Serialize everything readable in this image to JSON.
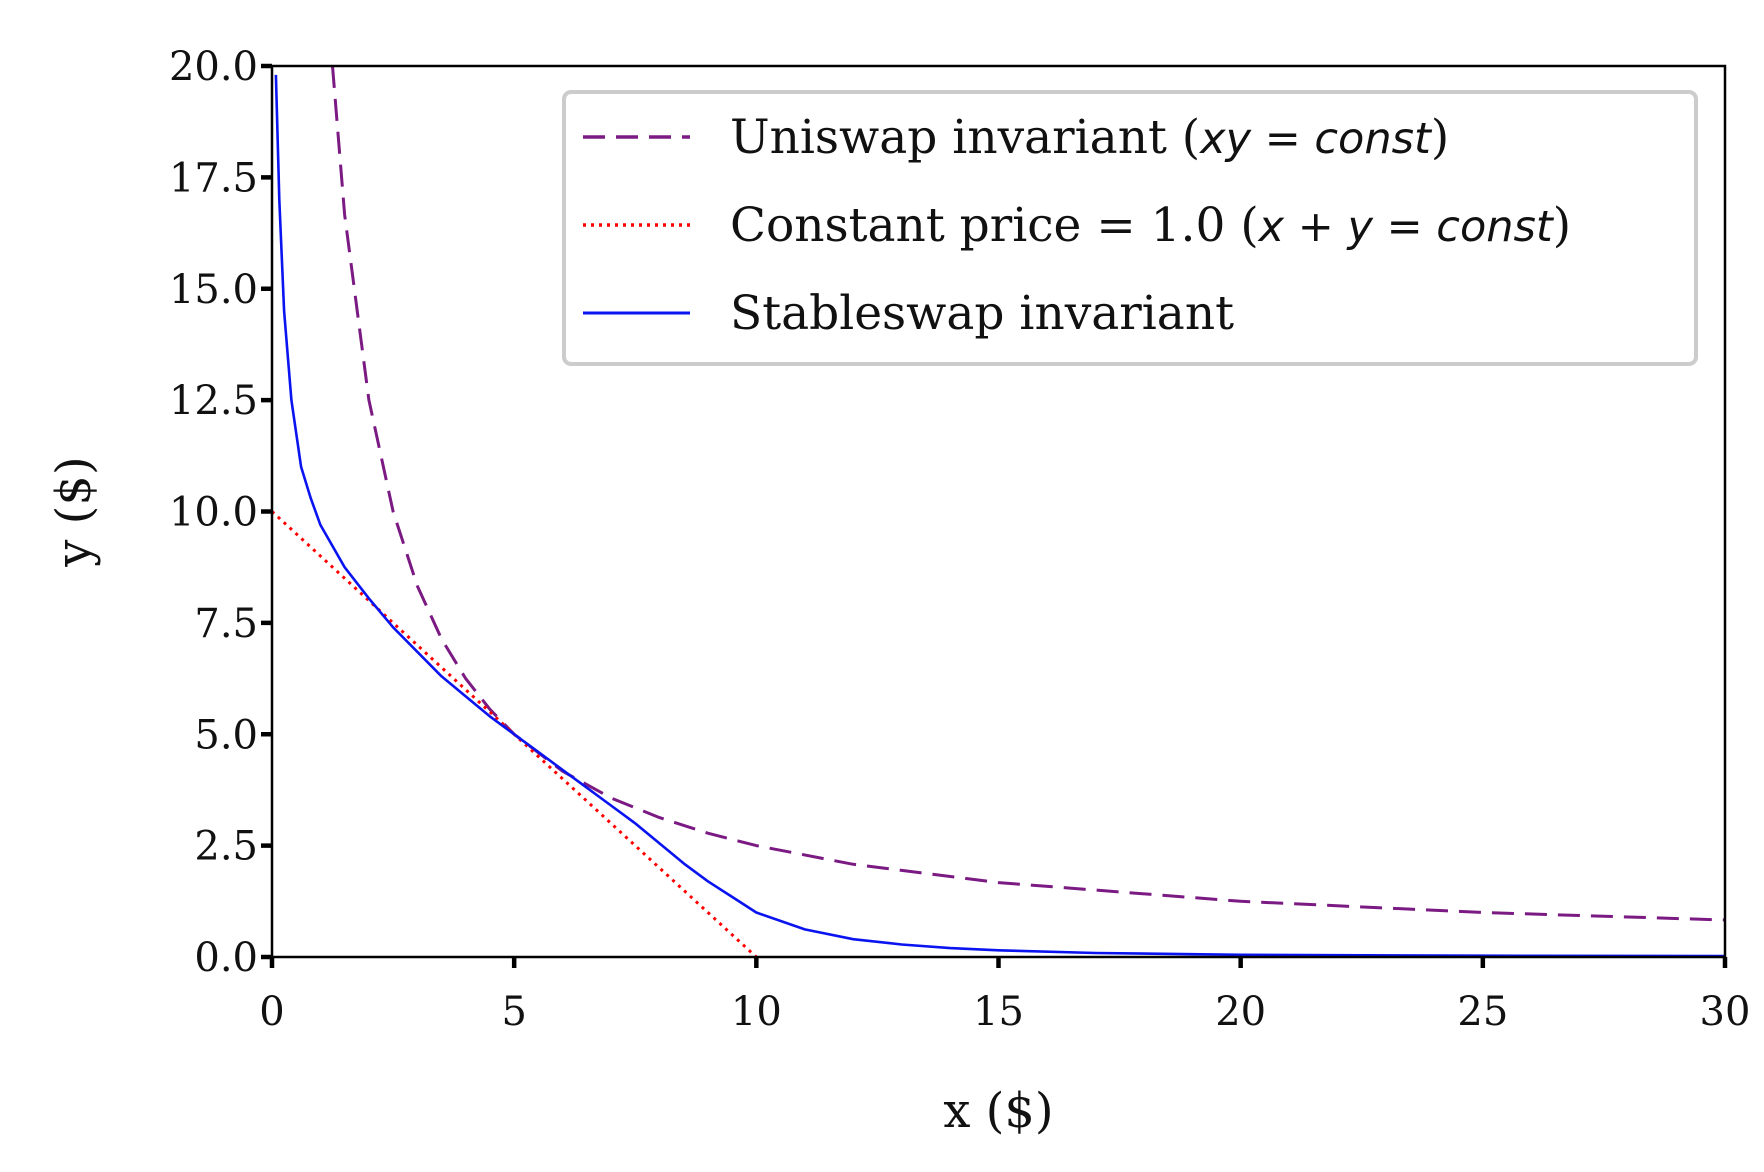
{
  "chart_data": {
    "type": "line",
    "xlabel": "x ($)",
    "ylabel": "y ($)",
    "xlim": [
      0,
      30
    ],
    "ylim": [
      0,
      20
    ],
    "x_ticks": [
      "0",
      "5",
      "10",
      "15",
      "20",
      "25",
      "30"
    ],
    "y_ticks": [
      "0.0",
      "2.5",
      "5.0",
      "7.5",
      "10.0",
      "12.5",
      "15.0",
      "17.5",
      "20.0"
    ],
    "grid": false,
    "legend_position": "top-right",
    "series": [
      {
        "name": "Uniswap invariant (xy = const)",
        "legend_prefix": "Uniswap invariant (",
        "legend_math": "xy = const",
        "legend_suffix": ")",
        "style": "dashed",
        "color": "#7b1a83",
        "x": [
          1.25,
          1.5,
          2,
          2.5,
          3,
          3.5,
          4,
          4.5,
          5,
          6,
          7,
          8,
          9,
          10,
          12,
          15,
          20,
          25,
          30
        ],
        "y": [
          20.0,
          16.67,
          12.5,
          10.0,
          8.33,
          7.14,
          6.25,
          5.56,
          5.0,
          4.17,
          3.57,
          3.13,
          2.78,
          2.5,
          2.08,
          1.67,
          1.25,
          1.0,
          0.83
        ]
      },
      {
        "name": "Constant price = 1.0 (x + y = const)",
        "legend_prefix": "Constant price = 1.0 (",
        "legend_math": "x + y = const",
        "legend_suffix": ")",
        "style": "dotted",
        "color": "#ff0000",
        "x": [
          0,
          10
        ],
        "y": [
          10,
          0
        ]
      },
      {
        "name": "Stableswap invariant",
        "legend_prefix": "Stableswap invariant",
        "legend_math": "",
        "legend_suffix": "",
        "style": "solid",
        "color": "#0a14f0",
        "x": [
          0.08,
          0.15,
          0.25,
          0.4,
          0.6,
          0.8,
          1.0,
          1.5,
          2.0,
          2.5,
          3.0,
          3.5,
          4.0,
          4.5,
          5.0,
          5.5,
          6.0,
          6.5,
          7.0,
          7.5,
          8.0,
          8.5,
          9.0,
          9.5,
          10.0,
          11.0,
          12.0,
          13.0,
          14.0,
          15.0,
          17.0,
          20.0,
          25.0,
          30.0
        ],
        "y": [
          19.8,
          17.0,
          14.5,
          12.5,
          11.0,
          10.3,
          9.7,
          8.75,
          8.05,
          7.4,
          6.85,
          6.3,
          5.85,
          5.4,
          5.0,
          4.6,
          4.2,
          3.8,
          3.4,
          3.0,
          2.55,
          2.1,
          1.7,
          1.35,
          1.0,
          0.62,
          0.4,
          0.28,
          0.2,
          0.15,
          0.09,
          0.05,
          0.03,
          0.02
        ]
      }
    ]
  }
}
